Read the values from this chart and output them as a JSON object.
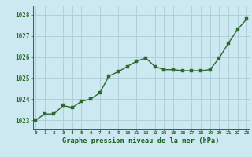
{
  "x": [
    0,
    1,
    2,
    3,
    4,
    5,
    6,
    7,
    8,
    9,
    10,
    11,
    12,
    13,
    14,
    15,
    16,
    17,
    18,
    19,
    20,
    21,
    22,
    23
  ],
  "y": [
    1023.0,
    1023.3,
    1023.3,
    1023.7,
    1023.6,
    1023.9,
    1024.0,
    1024.3,
    1025.1,
    1025.3,
    1025.55,
    1025.8,
    1025.95,
    1025.55,
    1025.4,
    1025.4,
    1025.35,
    1025.35,
    1025.35,
    1025.4,
    1025.95,
    1026.65,
    1027.3,
    1027.8
  ],
  "line_color": "#2d6a2d",
  "marker": "s",
  "marker_size": 2.2,
  "bg_color": "#cce8f0",
  "grid_color": "#aaccd4",
  "title": "Graphe pression niveau de la mer (hPa)",
  "title_color": "#1a5c1a",
  "ylabel_values": [
    1023,
    1024,
    1025,
    1026,
    1027,
    1028
  ],
  "xlabel_values": [
    0,
    1,
    2,
    3,
    4,
    5,
    6,
    7,
    8,
    9,
    10,
    11,
    12,
    13,
    14,
    15,
    16,
    17,
    18,
    19,
    20,
    21,
    22,
    23
  ],
  "ylim": [
    1022.6,
    1028.4
  ],
  "xlim": [
    -0.3,
    23.3
  ],
  "tick_color": "#2d6a2d",
  "spine_color": "#2d6a2d",
  "linewidth": 1.0,
  "ylabel_fontsize": 5.5,
  "xlabel_fontsize": 4.5,
  "title_fontsize": 6.2
}
